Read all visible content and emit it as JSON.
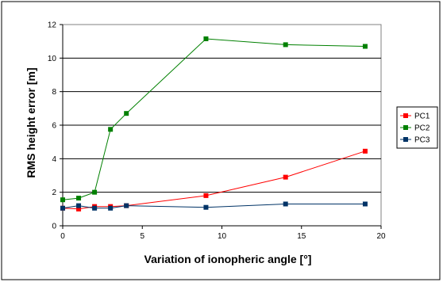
{
  "chart_data": {
    "type": "line",
    "title": "",
    "xlabel": "Variation of  ionopheric angle [°]",
    "ylabel": "RMS height error [m]",
    "xlim": [
      0,
      20
    ],
    "ylim": [
      0,
      12
    ],
    "xticks": [
      "0",
      "5",
      "10",
      "15",
      "20"
    ],
    "yticks": [
      "0",
      "2",
      "4",
      "6",
      "8",
      "10",
      "12"
    ],
    "grid": "horizontal",
    "legend_position": "right",
    "series": [
      {
        "name": "PC1",
        "color": "#ff0000",
        "x": [
          0,
          1,
          2,
          3,
          4,
          9,
          14,
          19
        ],
        "y": [
          1.05,
          1.0,
          1.15,
          1.15,
          1.2,
          1.8,
          2.9,
          4.45
        ]
      },
      {
        "name": "PC2",
        "color": "#008000",
        "x": [
          0,
          1,
          2,
          3,
          4,
          9,
          14,
          19
        ],
        "y": [
          1.55,
          1.65,
          2.0,
          5.75,
          6.7,
          11.15,
          10.8,
          10.7
        ]
      },
      {
        "name": "PC3",
        "color": "#003366",
        "x": [
          0,
          1,
          2,
          3,
          4,
          9,
          14,
          19
        ],
        "y": [
          1.05,
          1.2,
          1.05,
          1.05,
          1.2,
          1.1,
          1.3,
          1.3
        ]
      }
    ]
  }
}
